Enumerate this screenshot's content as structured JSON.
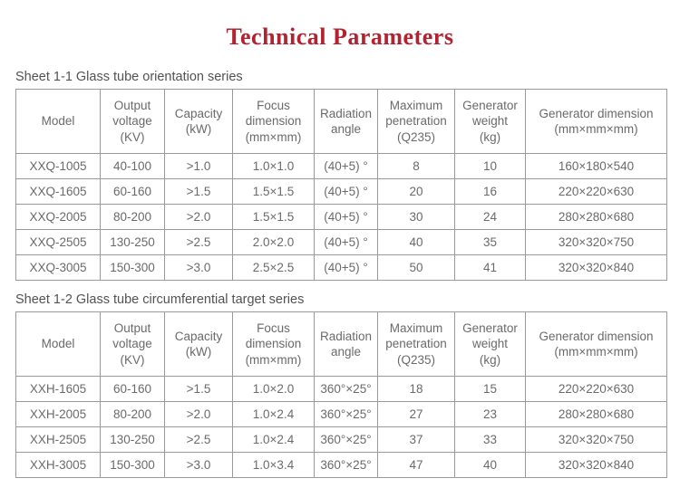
{
  "page": {
    "title": "Technical Parameters",
    "title_color": "#b5222f",
    "text_color": "#6a6a6a",
    "border_color": "#999999"
  },
  "tables": [
    {
      "caption": "Sheet 1-1 Glass tube orientation series",
      "headers": [
        "Model",
        "Output\nvoltage\n(KV)",
        "Capacity\n(kW)",
        "Focus\ndimension\n(mm×mm)",
        "Radiation\nangle",
        "Maximum\npenetration\n(Q235)",
        "Generator\nweight\n(kg)",
        "Generator dimension\n(mm×mm×mm)"
      ],
      "rows": [
        [
          "XXQ-1005",
          "40-100",
          ">1.0",
          "1.0×1.0",
          "(40+5) °",
          "8",
          "10",
          "160×180×540"
        ],
        [
          "XXQ-1605",
          "60-160",
          ">1.5",
          "1.5×1.5",
          "(40+5) °",
          "20",
          "16",
          "220×220×630"
        ],
        [
          "XXQ-2005",
          "80-200",
          ">2.0",
          "1.5×1.5",
          "(40+5) °",
          "30",
          "24",
          "280×280×680"
        ],
        [
          "XXQ-2505",
          "130-250",
          ">2.5",
          "2.0×2.0",
          "(40+5) °",
          "40",
          "35",
          "320×320×750"
        ],
        [
          "XXQ-3005",
          "150-300",
          ">3.0",
          "2.5×2.5",
          "(40+5) °",
          "50",
          "41",
          "320×320×840"
        ]
      ]
    },
    {
      "caption": "Sheet 1-2 Glass tube circumferential target series",
      "headers": [
        "Model",
        "Output\nvoltage\n(KV)",
        "Capacity\n(kW)",
        "Focus\ndimension\n(mm×mm)",
        "Radiation\nangle",
        "Maximum\npenetration\n(Q235)",
        "Generator\nweight\n(kg)",
        "Generator dimension\n(mm×mm×mm)"
      ],
      "rows": [
        [
          "XXH-1605",
          "60-160",
          ">1.5",
          "1.0×2.0",
          "360°×25°",
          "18",
          "15",
          "220×220×630"
        ],
        [
          "XXH-2005",
          "80-200",
          ">2.0",
          "1.0×2.4",
          "360°×25°",
          "27",
          "23",
          "280×280×680"
        ],
        [
          "XXH-2505",
          "130-250",
          ">2.5",
          "1.0×2.4",
          "360°×25°",
          "37",
          "33",
          "320×320×750"
        ],
        [
          "XXH-3005",
          "150-300",
          ">3.0",
          "1.0×3.4",
          "360°×25°",
          "47",
          "40",
          "320×320×840"
        ]
      ]
    }
  ]
}
